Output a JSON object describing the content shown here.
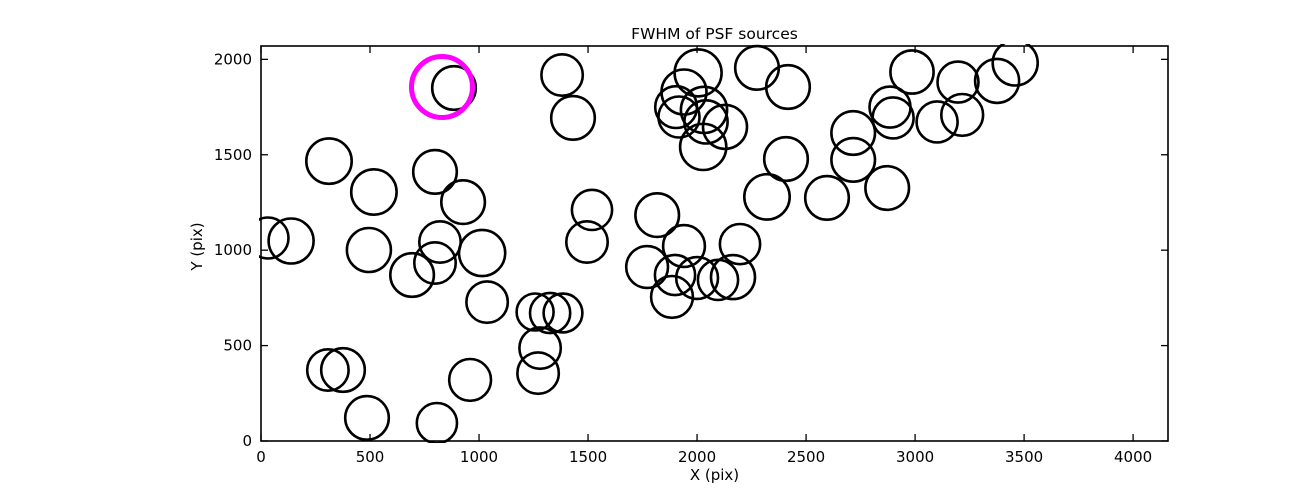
{
  "chart_data": {
    "type": "scatter",
    "title": "FWHM of PSF sources",
    "xlabel": "X (pix)",
    "ylabel": "Y (pix)",
    "xlim": [
      0,
      4160
    ],
    "ylim": [
      0,
      2070
    ],
    "xticks": [
      0,
      500,
      1000,
      1500,
      2000,
      2500,
      3000,
      3500,
      4000
    ],
    "yticks": [
      0,
      500,
      1000,
      1500,
      2000
    ],
    "grid": false,
    "legend": "none",
    "marker_style": "open-circle",
    "marker_color": "#000000",
    "highlight_color": "#ff00ff",
    "points": [
      {
        "x": 32,
        "y": 1064,
        "r": 94
      },
      {
        "x": 138,
        "y": 1048,
        "r": 103
      },
      {
        "x": 312,
        "y": 1467,
        "r": 104
      },
      {
        "x": 518,
        "y": 1305,
        "r": 104
      },
      {
        "x": 798,
        "y": 1410,
        "r": 100
      },
      {
        "x": 927,
        "y": 1252,
        "r": 100
      },
      {
        "x": 885,
        "y": 1850,
        "r": 100
      },
      {
        "x": 1381,
        "y": 1918,
        "r": 95
      },
      {
        "x": 1431,
        "y": 1693,
        "r": 100
      },
      {
        "x": 495,
        "y": 1001,
        "r": 101
      },
      {
        "x": 693,
        "y": 870,
        "r": 100
      },
      {
        "x": 798,
        "y": 933,
        "r": 95
      },
      {
        "x": 821,
        "y": 1043,
        "r": 95
      },
      {
        "x": 1014,
        "y": 985,
        "r": 106
      },
      {
        "x": 1037,
        "y": 728,
        "r": 95
      },
      {
        "x": 307,
        "y": 372,
        "r": 95
      },
      {
        "x": 376,
        "y": 372,
        "r": 100
      },
      {
        "x": 486,
        "y": 121,
        "r": 100
      },
      {
        "x": 807,
        "y": 94,
        "r": 92
      },
      {
        "x": 959,
        "y": 320,
        "r": 96
      },
      {
        "x": 1257,
        "y": 676,
        "r": 85
      },
      {
        "x": 1326,
        "y": 671,
        "r": 92
      },
      {
        "x": 1385,
        "y": 671,
        "r": 89
      },
      {
        "x": 1280,
        "y": 487,
        "r": 95
      },
      {
        "x": 1271,
        "y": 356,
        "r": 95
      },
      {
        "x": 1495,
        "y": 1043,
        "r": 95
      },
      {
        "x": 1518,
        "y": 1211,
        "r": 92
      },
      {
        "x": 1817,
        "y": 1184,
        "r": 100
      },
      {
        "x": 1771,
        "y": 912,
        "r": 96
      },
      {
        "x": 1899,
        "y": 870,
        "r": 92
      },
      {
        "x": 2000,
        "y": 854,
        "r": 96
      },
      {
        "x": 2096,
        "y": 844,
        "r": 92
      },
      {
        "x": 2165,
        "y": 859,
        "r": 101
      },
      {
        "x": 1885,
        "y": 755,
        "r": 96
      },
      {
        "x": 1940,
        "y": 1022,
        "r": 96
      },
      {
        "x": 2197,
        "y": 1032,
        "r": 92
      },
      {
        "x": 2005,
        "y": 1929,
        "r": 108
      },
      {
        "x": 1940,
        "y": 1829,
        "r": 103
      },
      {
        "x": 1904,
        "y": 1750,
        "r": 96
      },
      {
        "x": 1917,
        "y": 1698,
        "r": 94
      },
      {
        "x": 2032,
        "y": 1735,
        "r": 106
      },
      {
        "x": 2041,
        "y": 1672,
        "r": 99
      },
      {
        "x": 2028,
        "y": 1541,
        "r": 106
      },
      {
        "x": 2128,
        "y": 1646,
        "r": 101
      },
      {
        "x": 2275,
        "y": 1955,
        "r": 100
      },
      {
        "x": 2417,
        "y": 1855,
        "r": 100
      },
      {
        "x": 2408,
        "y": 1478,
        "r": 100
      },
      {
        "x": 2321,
        "y": 1279,
        "r": 104
      },
      {
        "x": 2596,
        "y": 1274,
        "r": 100
      },
      {
        "x": 2716,
        "y": 1614,
        "r": 100
      },
      {
        "x": 2716,
        "y": 1473,
        "r": 100
      },
      {
        "x": 2872,
        "y": 1326,
        "r": 100
      },
      {
        "x": 2986,
        "y": 1934,
        "r": 99
      },
      {
        "x": 3197,
        "y": 1881,
        "r": 94
      },
      {
        "x": 3376,
        "y": 1887,
        "r": 101
      },
      {
        "x": 3459,
        "y": 1981,
        "r": 103
      },
      {
        "x": 2885,
        "y": 1750,
        "r": 94
      },
      {
        "x": 2899,
        "y": 1693,
        "r": 94
      },
      {
        "x": 3101,
        "y": 1672,
        "r": 94
      },
      {
        "x": 3216,
        "y": 1709,
        "r": 96
      }
    ],
    "highlight": {
      "x": 830,
      "y": 1855,
      "r": 140
    }
  }
}
